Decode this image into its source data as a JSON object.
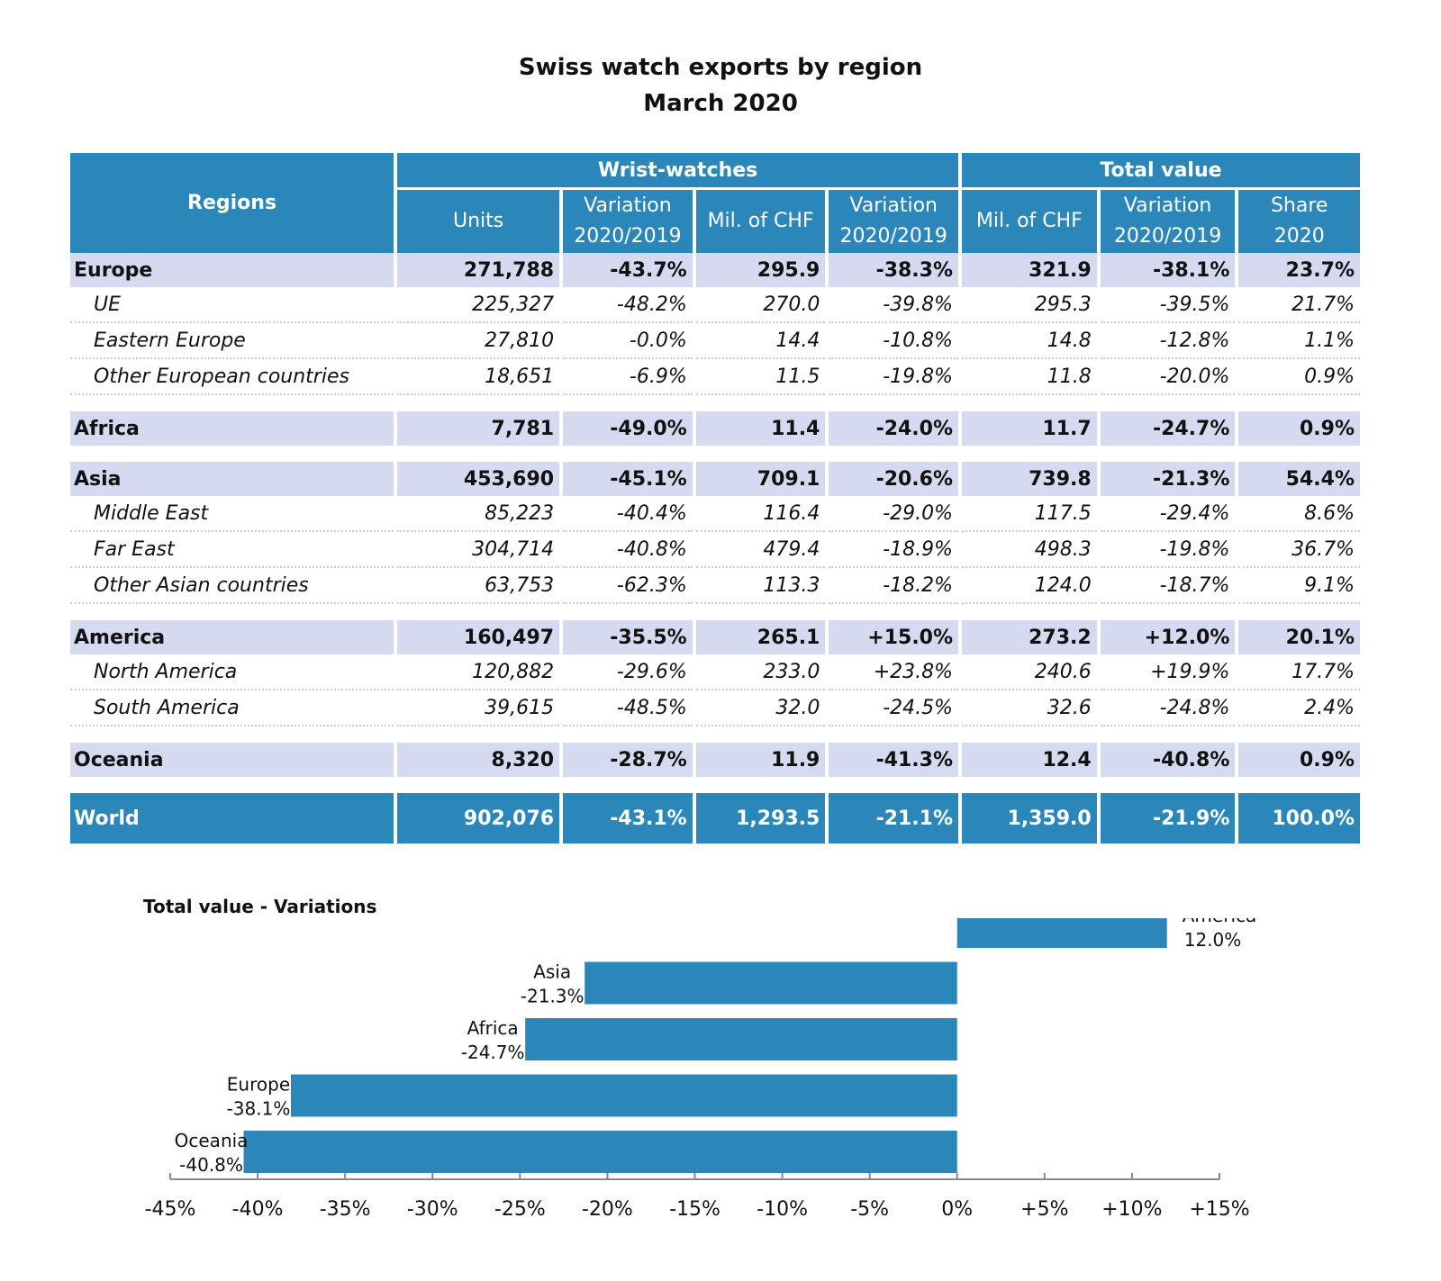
{
  "title_line1": "Swiss watch exports by region",
  "title_line2": "March 2020",
  "table": {
    "regions_header": "Regions",
    "group_wrist": "Wrist-watches",
    "group_total": "Total value",
    "col_units": "Units",
    "col_var1_a": "Variation",
    "col_var1_b": "2020/2019",
    "col_mil1": "Mil. of CHF",
    "col_var2_a": "Variation",
    "col_var2_b": "2020/2019",
    "col_mil2": "Mil. of CHF",
    "col_var3_a": "Variation",
    "col_var3_b": "2020/2019",
    "col_share_a": "Share",
    "col_share_b": "2020",
    "rows": [
      {
        "kind": "region",
        "name": "Europe",
        "units": "271,788",
        "var1": "-43.7%",
        "mil1": "295.9",
        "var2": "-38.3%",
        "mil2": "321.9",
        "var3": "-38.1%",
        "share": "23.7%"
      },
      {
        "kind": "sub",
        "name": "UE",
        "units": "225,327",
        "var1": "-48.2%",
        "mil1": "270.0",
        "var2": "-39.8%",
        "mil2": "295.3",
        "var3": "-39.5%",
        "share": "21.7%"
      },
      {
        "kind": "sub",
        "name": "Eastern Europe",
        "units": "27,810",
        "var1": "-0.0%",
        "mil1": "14.4",
        "var2": "-10.8%",
        "mil2": "14.8",
        "var3": "-12.8%",
        "share": "1.1%"
      },
      {
        "kind": "sub",
        "name": "Other European countries",
        "units": "18,651",
        "var1": "-6.9%",
        "mil1": "11.5",
        "var2": "-19.8%",
        "mil2": "11.8",
        "var3": "-20.0%",
        "share": "0.9%"
      },
      {
        "kind": "gap"
      },
      {
        "kind": "region",
        "name": "Africa",
        "units": "7,781",
        "var1": "-49.0%",
        "mil1": "11.4",
        "var2": "-24.0%",
        "mil2": "11.7",
        "var3": "-24.7%",
        "share": "0.9%"
      },
      {
        "kind": "gap"
      },
      {
        "kind": "region",
        "name": "Asia",
        "units": "453,690",
        "var1": "-45.1%",
        "mil1": "709.1",
        "var2": "-20.6%",
        "mil2": "739.8",
        "var3": "-21.3%",
        "share": "54.4%"
      },
      {
        "kind": "sub",
        "name": "Middle East",
        "units": "85,223",
        "var1": "-40.4%",
        "mil1": "116.4",
        "var2": "-29.0%",
        "mil2": "117.5",
        "var3": "-29.4%",
        "share": "8.6%"
      },
      {
        "kind": "sub",
        "name": "Far East",
        "units": "304,714",
        "var1": "-40.8%",
        "mil1": "479.4",
        "var2": "-18.9%",
        "mil2": "498.3",
        "var3": "-19.8%",
        "share": "36.7%"
      },
      {
        "kind": "sub",
        "name": "Other Asian countries",
        "units": "63,753",
        "var1": "-62.3%",
        "mil1": "113.3",
        "var2": "-18.2%",
        "mil2": "124.0",
        "var3": "-18.7%",
        "share": "9.1%"
      },
      {
        "kind": "gap"
      },
      {
        "kind": "region",
        "name": "America",
        "units": "160,497",
        "var1": "-35.5%",
        "mil1": "265.1",
        "var2": "+15.0%",
        "mil2": "273.2",
        "var3": "+12.0%",
        "share": "20.1%"
      },
      {
        "kind": "sub",
        "name": "North America",
        "units": "120,882",
        "var1": "-29.6%",
        "mil1": "233.0",
        "var2": "+23.8%",
        "mil2": "240.6",
        "var3": "+19.9%",
        "share": "17.7%"
      },
      {
        "kind": "sub",
        "name": "South America",
        "units": "39,615",
        "var1": "-48.5%",
        "mil1": "32.0",
        "var2": "-24.5%",
        "mil2": "32.6",
        "var3": "-24.8%",
        "share": "2.4%"
      },
      {
        "kind": "gap"
      },
      {
        "kind": "region",
        "name": "Oceania",
        "units": "8,320",
        "var1": "-28.7%",
        "mil1": "11.9",
        "var2": "-41.3%",
        "mil2": "12.4",
        "var3": "-40.8%",
        "share": "0.9%"
      },
      {
        "kind": "gap"
      },
      {
        "kind": "world",
        "name": "World",
        "units": "902,076",
        "var1": "-43.1%",
        "mil1": "1,293.5",
        "var2": "-21.1%",
        "mil2": "1,359.0",
        "var3": "-21.9%",
        "share": "100.0%"
      }
    ]
  },
  "chart_data": {
    "type": "bar",
    "orientation": "horizontal",
    "title": "Total value - Variations",
    "categories": [
      "America",
      "Asia",
      "Africa",
      "Europe",
      "Oceania"
    ],
    "values": [
      12.0,
      -21.3,
      -24.7,
      -38.1,
      -40.8
    ],
    "value_labels": [
      "12.0%",
      "-21.3%",
      "-24.7%",
      "-38.1%",
      "-40.8%"
    ],
    "xlim": [
      -45,
      15
    ],
    "xticks": [
      "-45%",
      "-40%",
      "-35%",
      "-30%",
      "-25%",
      "-20%",
      "-15%",
      "-10%",
      "-5%",
      "0%",
      "+5%",
      "+10%",
      "+15%"
    ],
    "bar_color": "#2b87ba",
    "grid": false
  },
  "colors": {
    "header": "#2b87ba",
    "region_row": "#d6daf0"
  }
}
